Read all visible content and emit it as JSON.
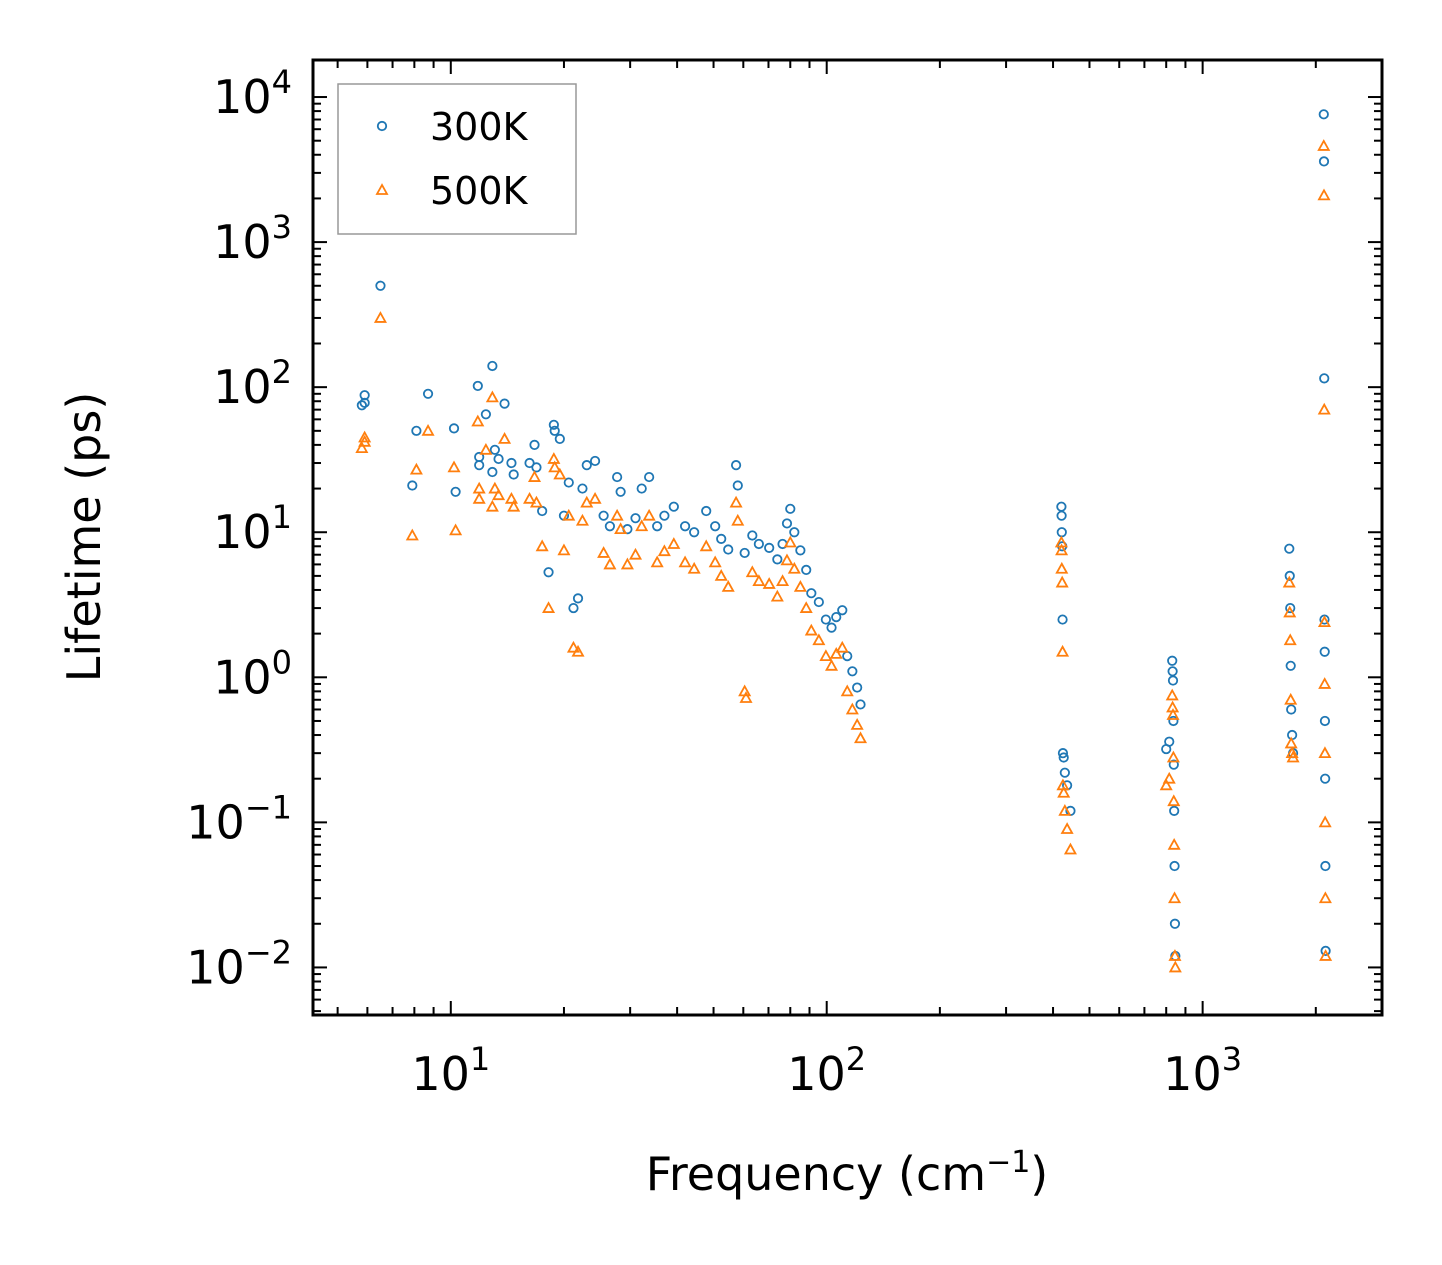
{
  "chart_data": {
    "type": "scatter",
    "xscale": "log",
    "yscale": "log",
    "xlim": [
      4.3,
      3000
    ],
    "ylim": [
      0.0047,
      18000
    ],
    "xlabel": {
      "base": "Frequency (cm",
      "sup": "−1",
      "tail": ")"
    },
    "ylabel": "Lifetime (ps)",
    "x_ticks": [
      {
        "value": 10,
        "base": "10",
        "exp": "1"
      },
      {
        "value": 100,
        "base": "10",
        "exp": "2"
      },
      {
        "value": 1000,
        "base": "10",
        "exp": "3"
      }
    ],
    "y_ticks": [
      {
        "value": 0.01,
        "base": "10",
        "exp": "−2"
      },
      {
        "value": 0.1,
        "base": "10",
        "exp": "−1"
      },
      {
        "value": 1,
        "base": "10",
        "exp": "0"
      },
      {
        "value": 10,
        "base": "10",
        "exp": "1"
      },
      {
        "value": 100,
        "base": "10",
        "exp": "2"
      },
      {
        "value": 1000,
        "base": "10",
        "exp": "3"
      },
      {
        "value": 10000,
        "base": "10",
        "exp": "4"
      }
    ],
    "legend_position": "top-left",
    "series": [
      {
        "name": "300K",
        "marker": "circle",
        "color": "#1f77b4",
        "points": [
          [
            5.8,
            75
          ],
          [
            5.9,
            78
          ],
          [
            5.9,
            88
          ],
          [
            6.5,
            500
          ],
          [
            7.9,
            21
          ],
          [
            8.1,
            50
          ],
          [
            8.7,
            90
          ],
          [
            10.2,
            52
          ],
          [
            10.3,
            19
          ],
          [
            11.8,
            102
          ],
          [
            11.9,
            33
          ],
          [
            11.9,
            29
          ],
          [
            12.4,
            65
          ],
          [
            12.9,
            140
          ],
          [
            12.9,
            26
          ],
          [
            13.1,
            37
          ],
          [
            13.4,
            32
          ],
          [
            13.9,
            77
          ],
          [
            14.5,
            30
          ],
          [
            14.7,
            25
          ],
          [
            16.2,
            30
          ],
          [
            16.7,
            40
          ],
          [
            16.9,
            28
          ],
          [
            17.5,
            14
          ],
          [
            18.2,
            5.3
          ],
          [
            18.8,
            55
          ],
          [
            18.9,
            50
          ],
          [
            19.5,
            44
          ],
          [
            20,
            13
          ],
          [
            20.6,
            22
          ],
          [
            21.2,
            3.0
          ],
          [
            21.8,
            3.5
          ],
          [
            22.4,
            20
          ],
          [
            23,
            29
          ],
          [
            24.2,
            31
          ],
          [
            25.5,
            13
          ],
          [
            26.5,
            11
          ],
          [
            27.7,
            24
          ],
          [
            28.3,
            19
          ],
          [
            29.5,
            10.5
          ],
          [
            31,
            12.5
          ],
          [
            32.2,
            20
          ],
          [
            33.7,
            24
          ],
          [
            35.4,
            11
          ],
          [
            37,
            13
          ],
          [
            39.2,
            15
          ],
          [
            42,
            11
          ],
          [
            44.4,
            10
          ],
          [
            47.8,
            14
          ],
          [
            50.5,
            11
          ],
          [
            52.4,
            9
          ],
          [
            54.7,
            7.6
          ],
          [
            57.4,
            29
          ],
          [
            58,
            21
          ],
          [
            60.5,
            7.2
          ],
          [
            63.4,
            9.5
          ],
          [
            66,
            8.3
          ],
          [
            70.3,
            7.8
          ],
          [
            73.9,
            6.5
          ],
          [
            76.3,
            8.3
          ],
          [
            78.4,
            11.5
          ],
          [
            80,
            14.5
          ],
          [
            82,
            10
          ],
          [
            85.1,
            7.5
          ],
          [
            88.2,
            5.5
          ],
          [
            91,
            3.8
          ],
          [
            95.3,
            3.3
          ],
          [
            99.5,
            2.5
          ],
          [
            103,
            2.2
          ],
          [
            106,
            2.6
          ],
          [
            110,
            2.9
          ],
          [
            113.4,
            1.4
          ],
          [
            117,
            1.1
          ],
          [
            120.5,
            0.85
          ],
          [
            123,
            0.65
          ],
          [
            421,
            15
          ],
          [
            421.5,
            13
          ],
          [
            422,
            10
          ],
          [
            423,
            8
          ],
          [
            424,
            2.5
          ],
          [
            425,
            0.3
          ],
          [
            427,
            0.28
          ],
          [
            430,
            0.22
          ],
          [
            436,
            0.18
          ],
          [
            445,
            0.12
          ],
          [
            830,
            1.3
          ],
          [
            832,
            1.1
          ],
          [
            834,
            0.95
          ],
          [
            836,
            0.5
          ],
          [
            838,
            0.25
          ],
          [
            840,
            0.12
          ],
          [
            842,
            0.05
          ],
          [
            844,
            0.02
          ],
          [
            846,
            0.012
          ],
          [
            815,
            0.36
          ],
          [
            800,
            0.32
          ],
          [
            1700,
            7.7
          ],
          [
            1705,
            5
          ],
          [
            1710,
            3
          ],
          [
            1715,
            1.2
          ],
          [
            1720,
            0.6
          ],
          [
            1730,
            0.4
          ],
          [
            1740,
            0.3
          ],
          [
            2100,
            7600
          ],
          [
            2103,
            3600
          ],
          [
            2106,
            115
          ],
          [
            2109,
            2.5
          ],
          [
            2112,
            1.5
          ],
          [
            2115,
            0.5
          ],
          [
            2118,
            0.2
          ],
          [
            2121,
            0.05
          ],
          [
            2124,
            0.013
          ]
        ]
      },
      {
        "name": "500K",
        "marker": "triangle",
        "color": "#ff7f0e",
        "points": [
          [
            5.8,
            38
          ],
          [
            5.9,
            42
          ],
          [
            5.9,
            45
          ],
          [
            6.5,
            300
          ],
          [
            7.9,
            9.5
          ],
          [
            8.1,
            27
          ],
          [
            8.7,
            50
          ],
          [
            10.2,
            28
          ],
          [
            10.3,
            10.3
          ],
          [
            11.8,
            58
          ],
          [
            11.9,
            20
          ],
          [
            11.9,
            17
          ],
          [
            12.4,
            37
          ],
          [
            12.9,
            85
          ],
          [
            12.9,
            15
          ],
          [
            13.1,
            20
          ],
          [
            13.4,
            18
          ],
          [
            13.9,
            44
          ],
          [
            14.5,
            17
          ],
          [
            14.7,
            15
          ],
          [
            16.2,
            17
          ],
          [
            16.7,
            24
          ],
          [
            16.9,
            16
          ],
          [
            17.5,
            8
          ],
          [
            18.2,
            3.0
          ],
          [
            18.8,
            32
          ],
          [
            18.9,
            28
          ],
          [
            19.5,
            25
          ],
          [
            20,
            7.5
          ],
          [
            20.6,
            13
          ],
          [
            21.2,
            1.6
          ],
          [
            21.8,
            1.5
          ],
          [
            22.4,
            12
          ],
          [
            23,
            16
          ],
          [
            24.2,
            17
          ],
          [
            25.5,
            7.2
          ],
          [
            26.5,
            6
          ],
          [
            27.7,
            13
          ],
          [
            28.3,
            10.5
          ],
          [
            29.5,
            6
          ],
          [
            31,
            7
          ],
          [
            32.2,
            11
          ],
          [
            33.7,
            13
          ],
          [
            35.4,
            6.2
          ],
          [
            37,
            7.4
          ],
          [
            39.2,
            8.3
          ],
          [
            42,
            6.2
          ],
          [
            44.4,
            5.6
          ],
          [
            47.8,
            8
          ],
          [
            50.5,
            6.2
          ],
          [
            52.4,
            5
          ],
          [
            54.7,
            4.2
          ],
          [
            57.4,
            16
          ],
          [
            58,
            12
          ],
          [
            60.5,
            0.8
          ],
          [
            61,
            0.72
          ],
          [
            63.4,
            5.3
          ],
          [
            66,
            4.6
          ],
          [
            70.3,
            4.4
          ],
          [
            73.9,
            3.6
          ],
          [
            76.3,
            4.6
          ],
          [
            78.4,
            6.4
          ],
          [
            80,
            8.5
          ],
          [
            82,
            5.6
          ],
          [
            85.1,
            4.2
          ],
          [
            88.2,
            3
          ],
          [
            91,
            2.1
          ],
          [
            95.3,
            1.8
          ],
          [
            99.5,
            1.4
          ],
          [
            103,
            1.2
          ],
          [
            106,
            1.45
          ],
          [
            110,
            1.6
          ],
          [
            113.4,
            0.8
          ],
          [
            117,
            0.6
          ],
          [
            120.5,
            0.47
          ],
          [
            123,
            0.38
          ],
          [
            421,
            8.5
          ],
          [
            421.5,
            7.5
          ],
          [
            422,
            5.6
          ],
          [
            423,
            4.5
          ],
          [
            424,
            1.5
          ],
          [
            425,
            0.18
          ],
          [
            427,
            0.16
          ],
          [
            430,
            0.12
          ],
          [
            436,
            0.09
          ],
          [
            445,
            0.065
          ],
          [
            830,
            0.75
          ],
          [
            832,
            0.62
          ],
          [
            834,
            0.55
          ],
          [
            836,
            0.28
          ],
          [
            838,
            0.14
          ],
          [
            840,
            0.07
          ],
          [
            842,
            0.03
          ],
          [
            844,
            0.012
          ],
          [
            846,
            0.01
          ],
          [
            815,
            0.2
          ],
          [
            800,
            0.18
          ],
          [
            1700,
            4.5
          ],
          [
            1705,
            2.8
          ],
          [
            1710,
            1.8
          ],
          [
            1715,
            0.7
          ],
          [
            1720,
            0.35
          ],
          [
            1730,
            0.3
          ],
          [
            1740,
            0.28
          ],
          [
            2100,
            4600
          ],
          [
            2103,
            2100
          ],
          [
            2106,
            70
          ],
          [
            2109,
            2.4
          ],
          [
            2112,
            0.9
          ],
          [
            2115,
            0.3
          ],
          [
            2118,
            0.1
          ],
          [
            2121,
            0.03
          ],
          [
            2124,
            0.012
          ]
        ]
      }
    ]
  }
}
